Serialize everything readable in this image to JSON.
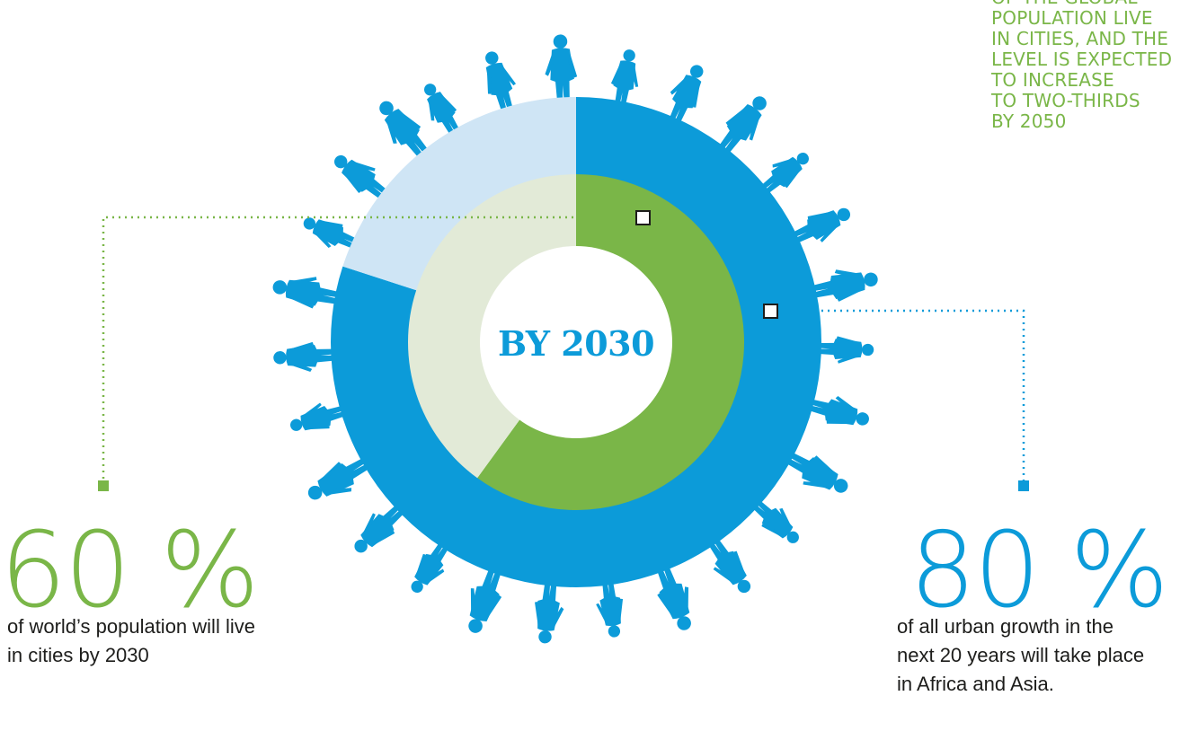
{
  "top_note": {
    "lines": [
      "OF THE GLOBAL",
      "POPULATION LIVE",
      "IN CITIES, AND THE",
      "LEVEL IS EXPECTED",
      "TO INCREASE",
      "TO TWO-THIRDS",
      "BY 2050"
    ]
  },
  "center_label": "BY 2030",
  "left_stat": {
    "value": "60 %",
    "caption_lines": [
      "of world’s population will live",
      "in cities by 2030"
    ]
  },
  "right_stat": {
    "value": "80 %",
    "caption_lines": [
      "of all urban growth in the",
      "next 20 years will take place",
      "in Africa and Asia."
    ]
  },
  "colors": {
    "blue": "#0c9bd9",
    "light_blue": "#cfe5f5",
    "green": "#7ab648",
    "light_green": "#e2ead7",
    "figures": "#0c9bd9"
  },
  "chart_data": [
    {
      "type": "pie",
      "ring": "outer",
      "slices": [
        {
          "label": "urban growth in Africa and Asia",
          "value": 80,
          "color": "#0c9bd9"
        },
        {
          "label": "rest",
          "value": 20,
          "color": "#cfe5f5"
        }
      ]
    },
    {
      "type": "pie",
      "ring": "inner",
      "slices": [
        {
          "label": "world population living in cities by 2030",
          "value": 60,
          "color": "#7ab648"
        },
        {
          "label": "rest",
          "value": 40,
          "color": "#e2ead7"
        }
      ]
    }
  ]
}
